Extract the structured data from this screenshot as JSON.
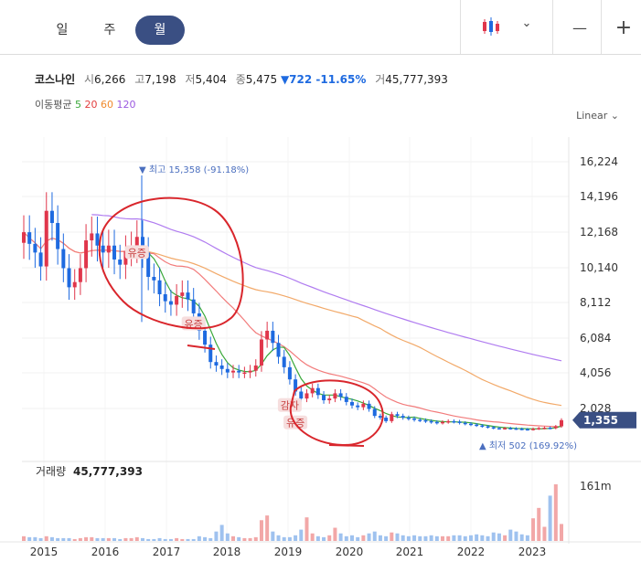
{
  "tabs": [
    {
      "label": "일",
      "active": false
    },
    {
      "label": "주",
      "active": false
    },
    {
      "label": "월",
      "active": true
    }
  ],
  "controls": {
    "chevron": "⌄",
    "minus": "—",
    "plus": "+"
  },
  "stock": {
    "name": "코스나인",
    "open_label": "시",
    "open": "6,266",
    "high_label": "고",
    "high": "7,198",
    "low_label": "저",
    "low": "5,404",
    "close_label": "종",
    "close": "5,475",
    "change": "▼722 -11.65%",
    "volume_label": "거",
    "volume": "45,777,393"
  },
  "moving_average": {
    "label": "이동평균",
    "periods": [
      {
        "n": "5",
        "color": "#3aa83a"
      },
      {
        "n": "20",
        "color": "#e33e3e"
      },
      {
        "n": "60",
        "color": "#f08a2c"
      },
      {
        "n": "120",
        "color": "#9b59e0"
      }
    ]
  },
  "scale_label": "Linear",
  "colors": {
    "up": "#e0364b",
    "down": "#1e6ae0",
    "ma5": "#3aa83a",
    "ma20": "#f27b7b",
    "ma60": "#f2a969",
    "ma120": "#b07cf0",
    "annotation": "#d9262c",
    "badge": "#3a4f83"
  },
  "chart_data": {
    "type": "candlestick",
    "y_ticks": [
      "16,224",
      "14,196",
      "12,168",
      "10,140",
      "8,112",
      "6,084",
      "4,056",
      "2,028"
    ],
    "ylim": [
      0,
      17200
    ],
    "x_ticks": [
      "2015",
      "2016",
      "2017",
      "2018",
      "2019",
      "2020",
      "2021",
      "2022",
      "2023"
    ],
    "current_price_label": "1,355",
    "current_price": 1355,
    "high_annotation": "▼ 최고 15,358 (-91.18%)",
    "high_value": 15358,
    "low_annotation": "▲ 최저 502 (169.92%)",
    "low_value": 502,
    "events": [
      {
        "label": "유증",
        "month": 20,
        "value": 11000
      },
      {
        "label": "유증",
        "month": 30,
        "value": 6900
      },
      {
        "label": "감자",
        "month": 47,
        "value": 2200
      },
      {
        "label": "유증",
        "month": 48,
        "value": 1200
      }
    ],
    "close": [
      12168,
      11500,
      11000,
      10200,
      13400,
      12700,
      11200,
      10100,
      9000,
      9300,
      10100,
      11700,
      12100,
      11400,
      11000,
      11400,
      10600,
      10300,
      11100,
      11300,
      11900,
      11000,
      9600,
      9400,
      8600,
      8200,
      8000,
      8500,
      8700,
      8300,
      7500,
      6500,
      5700,
      4700,
      4500,
      4300,
      4100,
      4200,
      4100,
      4100,
      4200,
      4500,
      6000,
      6500,
      5800,
      5000,
      4400,
      3700,
      3000,
      2600,
      2900,
      3200,
      2800,
      2500,
      2600,
      2900,
      2700,
      2400,
      2200,
      2100,
      2300,
      2000,
      1600,
      1500,
      1300,
      1700,
      1600,
      1500,
      1450,
      1380,
      1350,
      1300,
      1250,
      1200,
      1250,
      1300,
      1270,
      1200,
      1150,
      1100,
      1050,
      1000,
      950,
      900,
      880,
      900,
      880,
      860,
      840,
      820,
      860,
      900,
      920,
      900,
      1000,
      1355
    ],
    "volume_max_label": "161m",
    "volume_label": "거래량",
    "volume_total": "45,777,393",
    "volume": [
      5,
      4,
      4,
      3,
      5,
      4,
      3,
      3,
      3,
      2,
      3,
      4,
      4,
      3,
      3,
      3,
      3,
      2,
      3,
      3,
      4,
      3,
      2,
      2,
      3,
      2,
      2,
      3,
      2,
      2,
      2,
      5,
      4,
      3,
      10,
      17,
      8,
      5,
      4,
      3,
      3,
      4,
      22,
      27,
      10,
      6,
      4,
      4,
      6,
      12,
      25,
      8,
      5,
      4,
      6,
      14,
      8,
      5,
      6,
      4,
      6,
      8,
      10,
      6,
      5,
      9,
      8,
      6,
      5,
      6,
      5,
      5,
      6,
      5,
      5,
      5,
      6,
      6,
      5,
      6,
      7,
      6,
      5,
      9,
      8,
      6,
      12,
      10,
      7,
      6,
      24,
      35,
      15,
      48,
      60,
      18
    ]
  }
}
